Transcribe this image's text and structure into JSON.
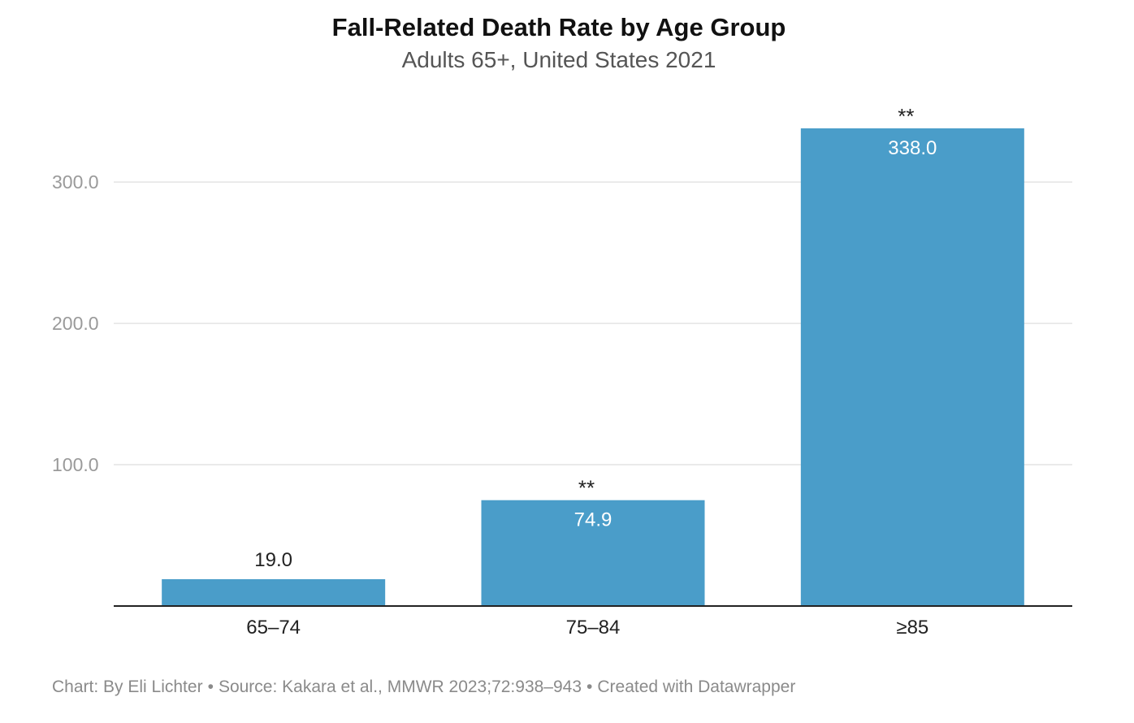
{
  "chart_data": {
    "type": "bar",
    "title": "Fall-Related Death Rate by Age Group",
    "subtitle": "Adults 65+, United States 2021",
    "categories": [
      "65–74",
      "75–84",
      "≥85"
    ],
    "values": [
      19.0,
      74.9,
      338.0
    ],
    "value_labels": [
      "19.0",
      "74.9",
      "338.0"
    ],
    "annotations": [
      "",
      "**",
      "**"
    ],
    "y_ticks": [
      100,
      200,
      300
    ],
    "y_tick_labels": [
      "100.0",
      "200.0",
      "300.0"
    ],
    "ylim": [
      0,
      338
    ],
    "grid": true,
    "colors": {
      "bar": "#4a9dc9",
      "grid": "#e4e4e4",
      "axis": "#222222",
      "tick_label": "#9a9a9a"
    }
  },
  "footer": {
    "chart_credit": "Chart: By Eli Lichter",
    "source": "Source: Kakara et al., MMWR 2023;72:938–943",
    "tool": "Created with Datawrapper",
    "separator": "•"
  }
}
